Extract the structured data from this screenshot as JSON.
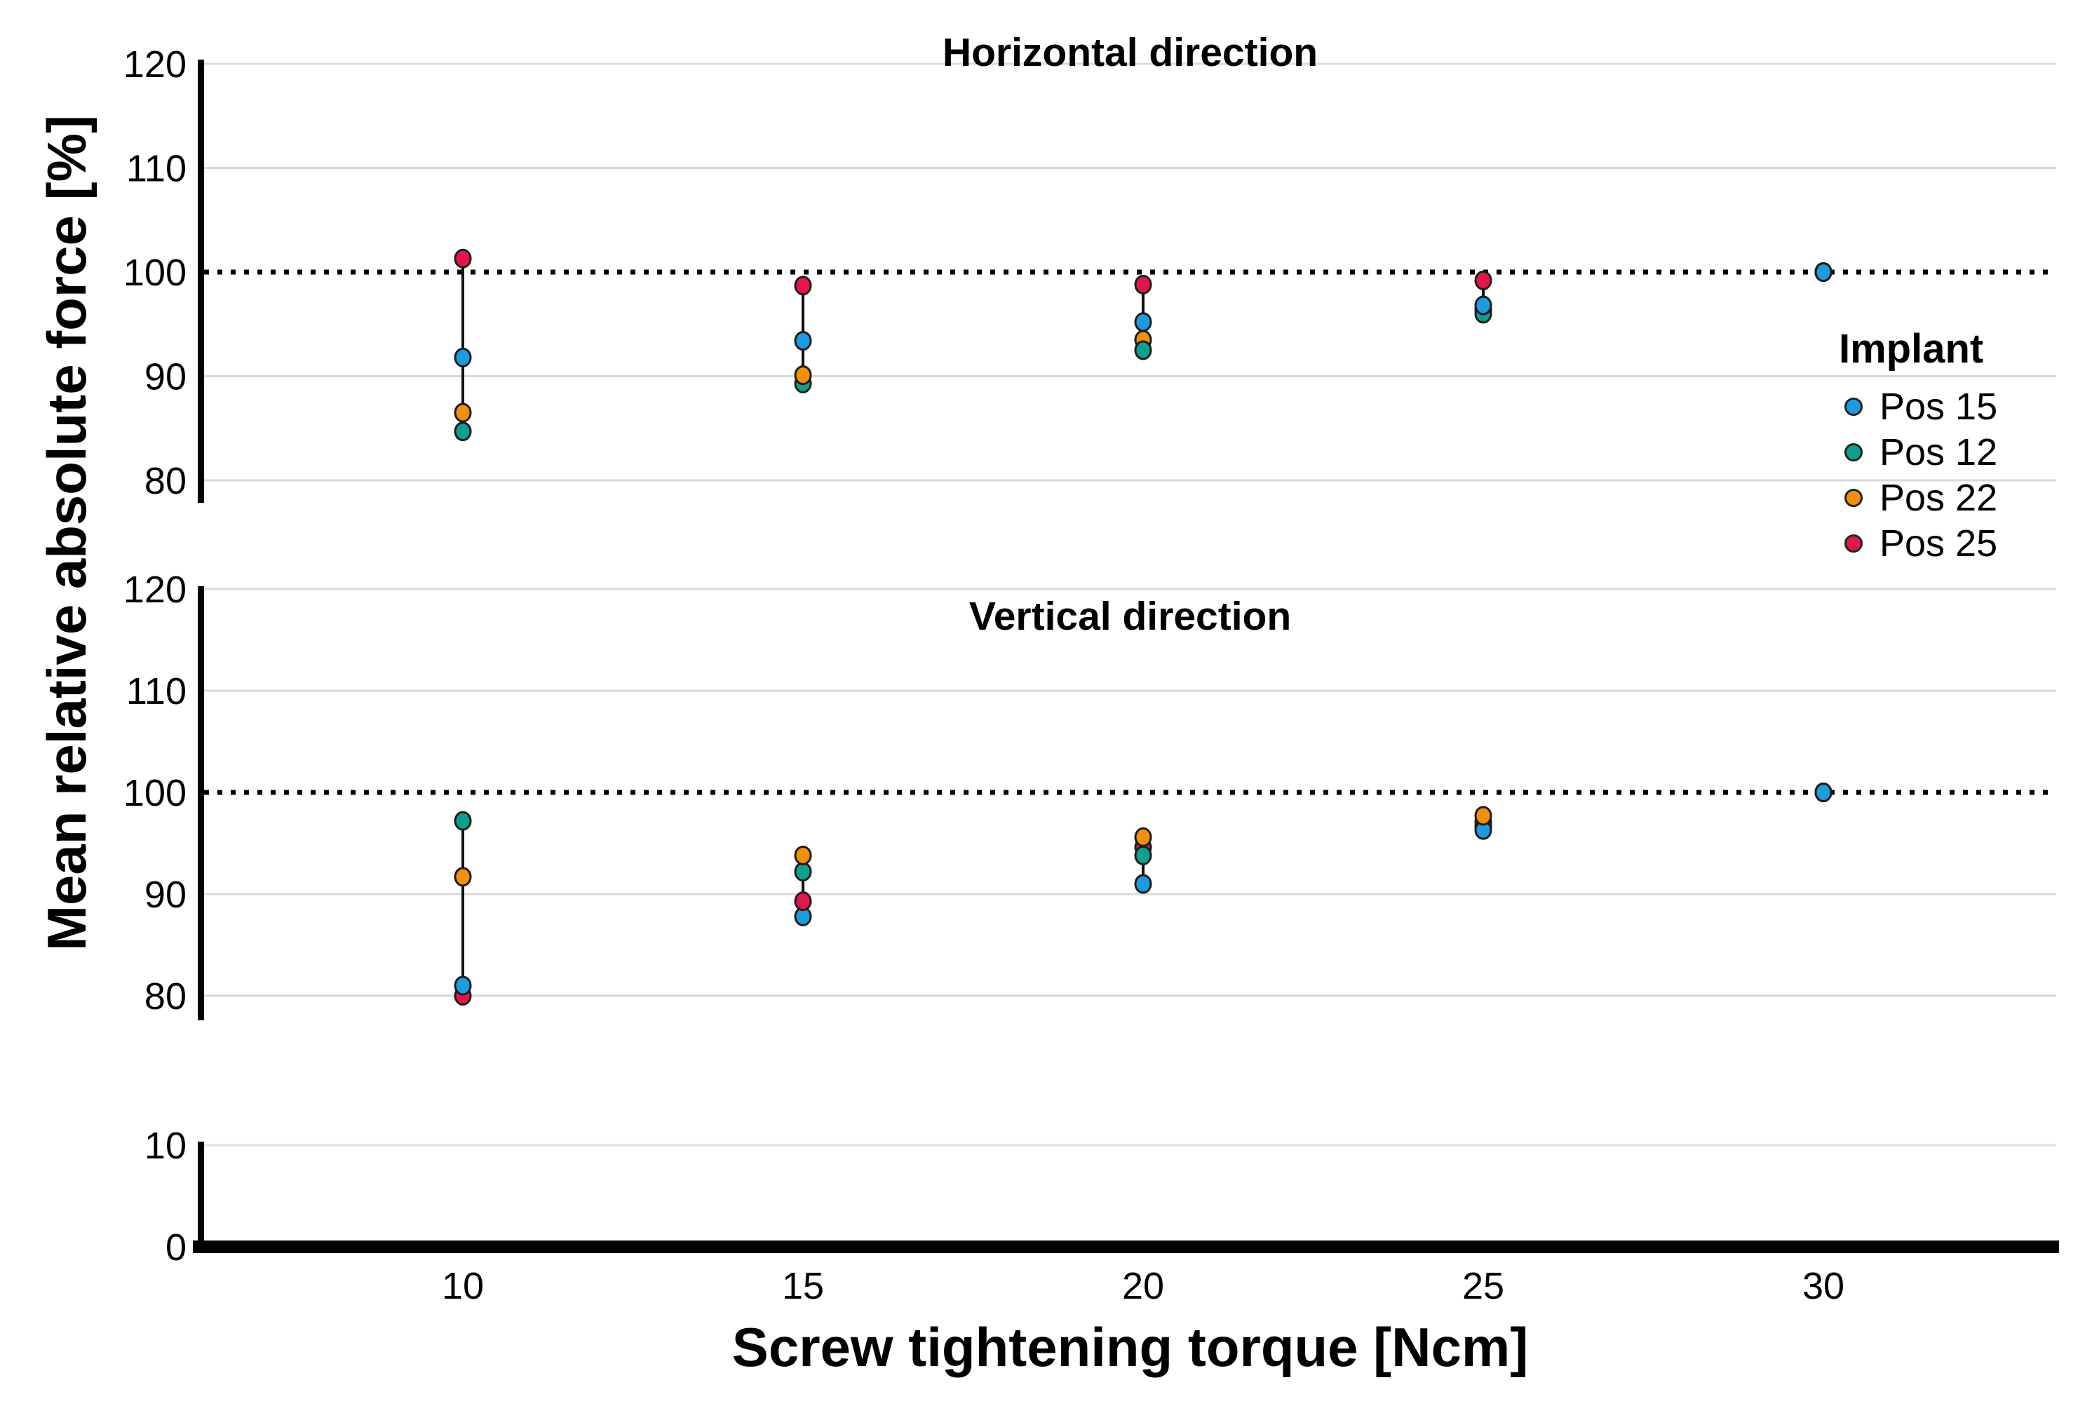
{
  "chart_data": {
    "type": "scatter",
    "title": "",
    "xlabel": "Screw tightening torque [Ncm]",
    "ylabel": "Mean relative absolute force [%]",
    "x_ticks": [
      10,
      15,
      20,
      25,
      30
    ],
    "y_ticks": [
      120,
      110,
      100,
      90,
      80
    ],
    "y_stub_ticks": [
      10,
      0
    ],
    "ylim": [
      80,
      120
    ],
    "reference_line_y": 100,
    "grid": true,
    "colors": {
      "grid": "#d9d9d9",
      "stub_grid": "#e2e2e2",
      "reference_line": "#000000",
      "axis": "#000000",
      "range_bar": "#111111",
      "dot_outline": "#1c1c1c"
    },
    "legend": {
      "title": "Implant",
      "position": "right-inside",
      "entries": [
        {
          "label": "Pos 15",
          "color": "#1E9BDF"
        },
        {
          "label": "Pos 12",
          "color": "#0E9F8D"
        },
        {
          "label": "Pos 22",
          "color": "#F0900B"
        },
        {
          "label": "Pos 25",
          "color": "#E3164B"
        }
      ]
    },
    "panels": [
      {
        "title": "Horizontal direction",
        "clusters": [
          {
            "x": 10,
            "range": [
              84.7,
              101.3
            ],
            "points": [
              [
                "Pos 12",
                84.7
              ],
              [
                "Pos 22",
                86.5
              ],
              [
                "Pos 15",
                91.8
              ],
              [
                "Pos 25",
                101.3
              ]
            ]
          },
          {
            "x": 15,
            "range": [
              89.3,
              98.7
            ],
            "points": [
              [
                "Pos 12",
                89.3
              ],
              [
                "Pos 22",
                90.1
              ],
              [
                "Pos 15",
                93.4
              ],
              [
                "Pos 25",
                98.7
              ]
            ]
          },
          {
            "x": 20,
            "range": [
              92.5,
              98.8
            ],
            "points": [
              [
                "Pos 22",
                93.5
              ],
              [
                "Pos 12",
                92.5
              ],
              [
                "Pos 15",
                95.2
              ],
              [
                "Pos 25",
                98.8
              ]
            ]
          },
          {
            "x": 25,
            "range": [
              96.0,
              99.2
            ],
            "points": [
              [
                "Pos 22",
                96.4
              ],
              [
                "Pos 12",
                96.0
              ],
              [
                "Pos 15",
                96.8
              ],
              [
                "Pos 25",
                99.2
              ]
            ]
          },
          {
            "x": 30,
            "range": null,
            "points": [
              [
                "Pos 25",
                100
              ],
              [
                "Pos 22",
                100
              ],
              [
                "Pos 12",
                100
              ],
              [
                "Pos 15",
                100
              ]
            ]
          }
        ]
      },
      {
        "title": "Vertical direction",
        "clusters": [
          {
            "x": 10,
            "range": [
              80.0,
              97.2
            ],
            "points": [
              [
                "Pos 25",
                80.0
              ],
              [
                "Pos 15",
                81.0
              ],
              [
                "Pos 22",
                91.7
              ],
              [
                "Pos 12",
                97.2
              ]
            ]
          },
          {
            "x": 15,
            "range": [
              87.8,
              93.8
            ],
            "points": [
              [
                "Pos 15",
                87.8
              ],
              [
                "Pos 25",
                89.3
              ],
              [
                "Pos 12",
                92.2
              ],
              [
                "Pos 22",
                93.8
              ]
            ]
          },
          {
            "x": 20,
            "range": [
              91.0,
              95.6
            ],
            "points": [
              [
                "Pos 25",
                94.6
              ],
              [
                "Pos 12",
                93.8
              ],
              [
                "Pos 22",
                95.6
              ],
              [
                "Pos 15",
                91.0
              ]
            ]
          },
          {
            "x": 25,
            "range": [
              96.3,
              97.7
            ],
            "points": [
              [
                "Pos 12",
                96.7
              ],
              [
                "Pos 25",
                97.1
              ],
              [
                "Pos 15",
                96.3
              ],
              [
                "Pos 22",
                97.7
              ]
            ]
          },
          {
            "x": 30,
            "range": null,
            "points": [
              [
                "Pos 25",
                100
              ],
              [
                "Pos 22",
                100
              ],
              [
                "Pos 12",
                100
              ],
              [
                "Pos 15",
                100
              ]
            ]
          }
        ]
      }
    ]
  }
}
